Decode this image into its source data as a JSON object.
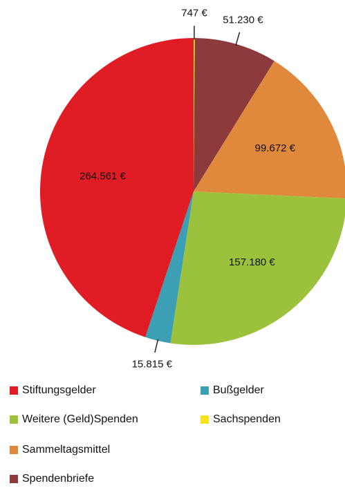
{
  "chart_data": {
    "type": "pie",
    "categories": [
      "Sachspenden",
      "Spendenbriefe",
      "Sammeltagsmittel",
      "Weitere (Geld)Spenden",
      "Bußgelder",
      "Stiftungsgelder"
    ],
    "values": [
      747,
      51230,
      99672,
      157180,
      15815,
      264561
    ],
    "value_labels": [
      "747 €",
      "51.230 €",
      "99.672 €",
      "157.180 €",
      "15.815 €",
      "264.561 €"
    ],
    "colors": [
      "#f7e11c",
      "#8c3a3b",
      "#e0883c",
      "#9cc23d",
      "#3c9fb4",
      "#e01c25"
    ],
    "legend": true
  }
}
